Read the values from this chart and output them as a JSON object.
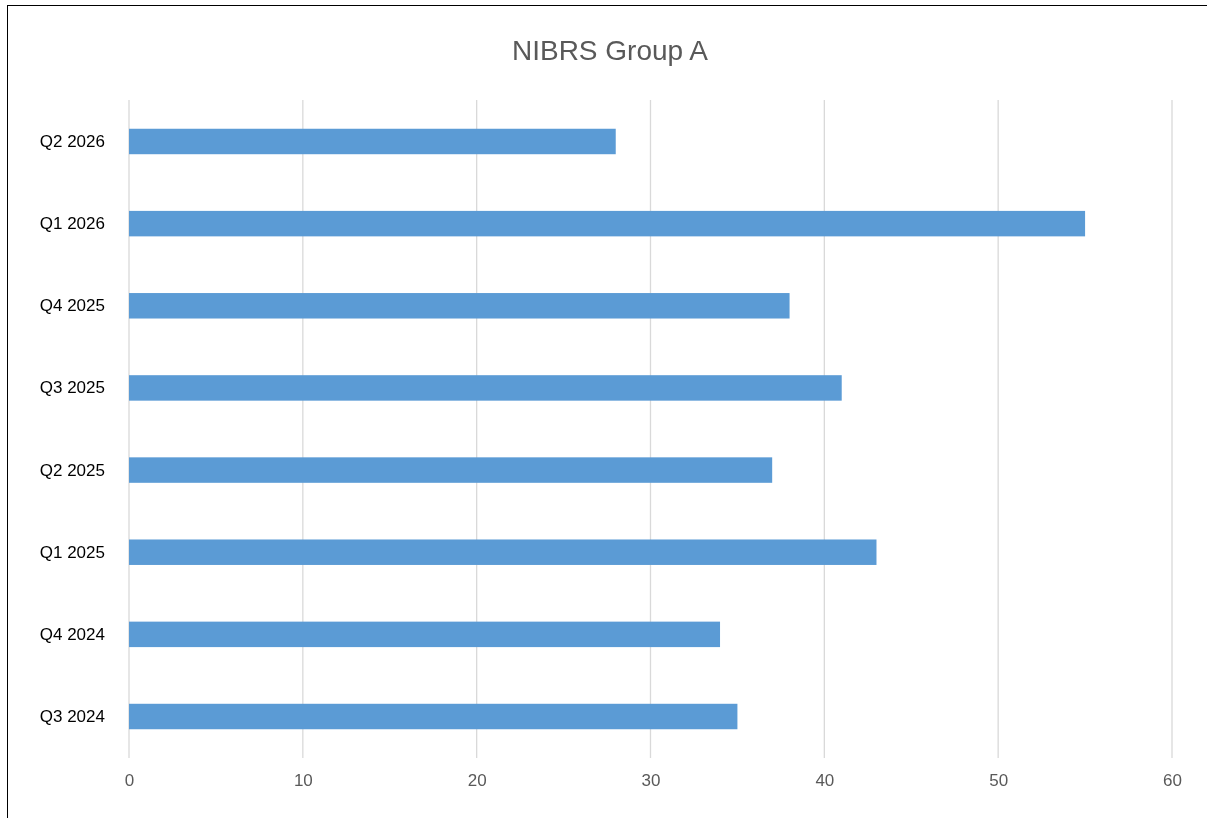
{
  "chart_data": {
    "type": "bar",
    "title": "NIBRS Group A",
    "orientation": "horizontal",
    "categories": [
      "Q2 2026",
      "Q1 2026",
      "Q4 2025",
      "Q3 2025",
      "Q2 2025",
      "Q1 2025",
      "Q4 2024",
      "Q3 2024"
    ],
    "values": [
      28,
      55,
      38,
      41,
      37,
      43,
      34,
      35
    ],
    "color": "#5b9bd5",
    "xlim": [
      0,
      60
    ],
    "xticks": [
      0,
      10,
      20,
      30,
      40,
      50,
      60
    ],
    "grid": "x"
  }
}
